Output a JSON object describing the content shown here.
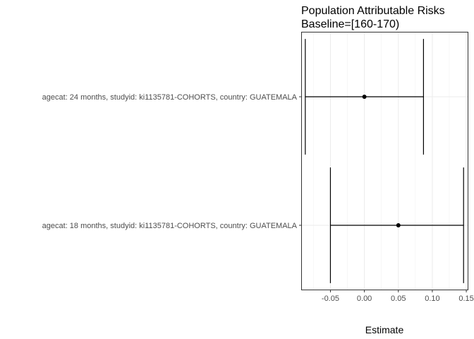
{
  "chart_data": {
    "type": "errorbar",
    "title_lines": [
      "Population Attributable Risks",
      "Baseline=[160-170)"
    ],
    "xlabel": "Estimate",
    "ylabel": "",
    "xlim": [
      -0.092,
      0.152
    ],
    "x_ticks": [
      -0.05,
      0.0,
      0.05,
      0.1,
      0.15
    ],
    "x_tick_labels": [
      "-0.05",
      "0.00",
      "0.05",
      "0.10",
      "0.15"
    ],
    "categories": [
      "agecat: 24 months, studyid: ki1135781-COHORTS, country: GUATEMALA",
      "agecat: 18 months, studyid: ki1135781-COHORTS, country: GUATEMALA"
    ],
    "points": [
      {
        "estimate": 0.0,
        "lower": -0.087,
        "upper": 0.087
      },
      {
        "estimate": 0.05,
        "lower": -0.05,
        "upper": 0.146
      }
    ],
    "grid": true,
    "legend": "none"
  }
}
